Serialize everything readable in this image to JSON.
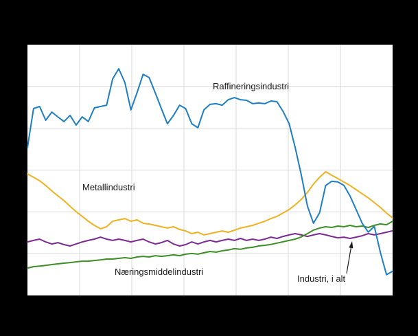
{
  "chart": {
    "background": "#000000",
    "plot_background": "#ffffff",
    "grid_color": "#d9d9d9",
    "annotation_color": "#1a1a1a"
  },
  "chart_data": {
    "type": "line",
    "x_axis_labels_visible": false,
    "y_axis_labels_visible": false,
    "grid": true,
    "legend_position": "inline-annotations",
    "ylim": [
      40,
      190
    ],
    "series": [
      {
        "id": "raffineringsindustri",
        "name": "Raffineringsindustri",
        "color": "#1d7dc2",
        "values": [
          128.4,
          151.8,
          153.0,
          144.8,
          149.7,
          146.8,
          144.0,
          147.7,
          141.9,
          146.8,
          144.0,
          152.2,
          153.0,
          153.8,
          169.5,
          175.6,
          167.4,
          151.0,
          161.2,
          172.3,
          170.3,
          161.2,
          151.8,
          142.7,
          147.7,
          153.8,
          151.8,
          142.7,
          140.3,
          151.0,
          154.3,
          154.7,
          153.8,
          157.1,
          158.3,
          157.1,
          156.7,
          154.7,
          155.1,
          154.7,
          156.3,
          155.9,
          150.1,
          142.7,
          128.4,
          112.0,
          93.5,
          83.2,
          89.4,
          105.8,
          108.3,
          107.9,
          105.8,
          99.6,
          91.4,
          83.2,
          77.9,
          81.2,
          65.5,
          52.4,
          54.5
        ]
      },
      {
        "id": "metallindustri",
        "name": "Metallindustri",
        "color": "#edb123",
        "values": [
          112.7,
          110.7,
          108.6,
          105.8,
          102.5,
          99.6,
          96.7,
          93.4,
          90.1,
          87.3,
          84.4,
          81.9,
          79.9,
          81.1,
          84.4,
          85.2,
          86.0,
          84.4,
          85.2,
          83.2,
          82.7,
          81.9,
          81.1,
          80.3,
          81.1,
          79.5,
          78.6,
          77.0,
          77.8,
          76.2,
          77.0,
          77.8,
          78.6,
          77.8,
          79.0,
          80.3,
          81.1,
          81.9,
          83.2,
          84.4,
          86.0,
          87.3,
          89.3,
          91.4,
          94.2,
          97.5,
          101.6,
          106.6,
          110.7,
          114.0,
          111.9,
          109.9,
          107.8,
          105.8,
          103.3,
          100.8,
          98.4,
          95.5,
          92.6,
          89.3,
          86.4
        ]
      },
      {
        "id": "naeringsmiddelindustri",
        "name": "Næringsmiddelindustri",
        "color": "#3e8d27",
        "values": [
          56.4,
          57.2,
          57.6,
          58.0,
          58.5,
          58.9,
          59.3,
          59.7,
          60.1,
          60.5,
          60.5,
          60.9,
          61.3,
          61.8,
          61.8,
          62.2,
          62.6,
          62.2,
          63.0,
          63.4,
          63.0,
          63.8,
          63.4,
          63.8,
          64.3,
          63.8,
          64.7,
          65.1,
          64.7,
          65.5,
          66.3,
          65.9,
          66.7,
          67.2,
          68.0,
          67.6,
          68.4,
          68.8,
          69.6,
          70.0,
          70.5,
          71.3,
          72.1,
          72.9,
          73.7,
          75.0,
          77.0,
          79.1,
          80.3,
          81.1,
          80.7,
          81.5,
          81.1,
          81.9,
          81.1,
          81.5,
          80.7,
          81.9,
          82.8,
          82.3,
          84.4
        ]
      },
      {
        "id": "industri-i-alt",
        "name": "Industri, i alt",
        "color": "#7b2b8f",
        "values": [
          72.0,
          72.9,
          73.7,
          72.0,
          70.8,
          71.6,
          70.4,
          69.6,
          70.8,
          72.0,
          72.9,
          73.7,
          74.9,
          73.7,
          72.9,
          73.7,
          72.9,
          72.0,
          72.9,
          73.7,
          72.0,
          70.8,
          71.6,
          72.9,
          70.8,
          69.6,
          70.4,
          72.0,
          70.8,
          72.0,
          72.9,
          72.0,
          72.9,
          73.7,
          72.9,
          74.1,
          72.9,
          73.7,
          72.9,
          73.7,
          74.9,
          74.1,
          75.3,
          76.2,
          77.0,
          76.2,
          75.3,
          76.2,
          77.0,
          76.2,
          75.3,
          74.5,
          74.9,
          74.1,
          74.9,
          75.7,
          77.0,
          76.2,
          77.0,
          77.8,
          78.7
        ]
      }
    ]
  }
}
